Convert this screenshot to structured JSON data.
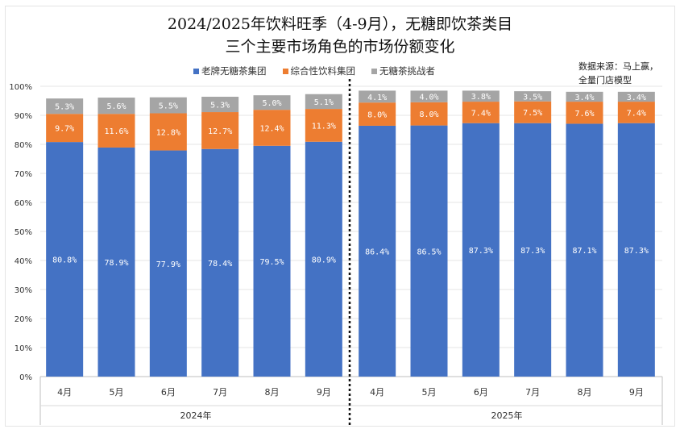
{
  "chart_data": {
    "type": "bar",
    "stacked": true,
    "title": "2024/2025年饮料旺季（4-9月），无糖即饮茶类目",
    "subtitle": "三个主要市场角色的市场份额变化",
    "source": [
      "数据来源：马上赢，",
      "全量门店模型"
    ],
    "categories": [
      "4月",
      "5月",
      "6月",
      "7月",
      "8月",
      "9月",
      "4月",
      "5月",
      "6月",
      "7月",
      "8月",
      "9月"
    ],
    "groups": [
      {
        "label": "2024年",
        "count": 6
      },
      {
        "label": "2025年",
        "count": 6
      }
    ],
    "series": [
      {
        "name": "老牌无糖茶集团",
        "color": "#4472C4",
        "values": [
          80.8,
          78.9,
          77.9,
          78.4,
          79.5,
          80.9,
          86.4,
          86.5,
          87.3,
          87.3,
          87.1,
          87.3
        ]
      },
      {
        "name": "综合性饮料集团",
        "color": "#ED7D31",
        "values": [
          9.7,
          11.6,
          12.8,
          12.7,
          12.4,
          11.3,
          8.0,
          8.0,
          7.4,
          7.5,
          7.6,
          7.4
        ]
      },
      {
        "name": "无糖茶挑战者",
        "color": "#A5A5A5",
        "values": [
          5.3,
          5.6,
          5.5,
          5.3,
          5.0,
          5.1,
          4.1,
          4.0,
          3.8,
          3.5,
          3.4,
          3.4
        ]
      }
    ],
    "ylim": [
      0,
      100
    ],
    "yticks": [
      "0%",
      "10%",
      "20%",
      "30%",
      "40%",
      "50%",
      "60%",
      "70%",
      "80%",
      "90%",
      "100%"
    ],
    "grid": true,
    "legend": "top"
  }
}
